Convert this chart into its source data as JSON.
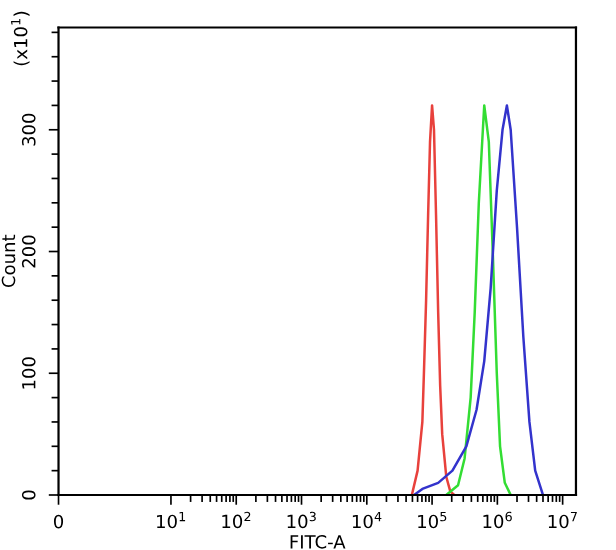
{
  "chart_data": {
    "type": "line",
    "xlabel": "FITC-A",
    "ylabel": "Count",
    "annotations": [
      "(x10$^{1}$)"
    ],
    "log": "x",
    "xlim": [
      0,
      16000000
    ],
    "ylim": [
      0,
      384
    ],
    "xticks": [
      0,
      {
        "value": 10,
        "label": "10$^{1}$"
      },
      {
        "value": 100,
        "label": "10$^{2}$"
      },
      {
        "value": 1000,
        "label": "10$^{3}$"
      },
      {
        "value": 10000,
        "label": "10$^{4}$"
      },
      {
        "value": 100000,
        "label": "10$^{5}$"
      },
      {
        "value": 1000000,
        "label": "10$^{6}$"
      },
      {
        "value": 10000000,
        "label": "10$^{7}$"
      }
    ],
    "yticks": [
      0,
      100,
      200,
      300
    ],
    "grid": false,
    "legend": false,
    "marker": "none",
    "line_style": "solid",
    "series": [
      {
        "color": "#e8413c",
        "x": [
          49000,
          60000,
          71000,
          75000,
          81000,
          87000,
          93000,
          100000,
          107000,
          115000,
          124000,
          133000,
          143000,
          165000,
          190000,
          220000
        ],
        "values": [
          0,
          20,
          60,
          100,
          160,
          230,
          290,
          320,
          300,
          230,
          150,
          90,
          50,
          15,
          3,
          0
        ]
      },
      {
        "color": "#33dd33",
        "x": [
          165000,
          250000,
          315000,
          390000,
          450000,
          520000,
          600000,
          630000,
          740000,
          850000,
          980000,
          1100000,
          1300000,
          1600000
        ],
        "values": [
          0,
          8,
          30,
          80,
          150,
          240,
          300,
          320,
          290,
          200,
          100,
          40,
          10,
          0
        ]
      },
      {
        "color": "#3333cc",
        "x": [
          53000,
          71000,
          124000,
          205000,
          335000,
          480000,
          630000,
          790000,
          980000,
          1200000,
          1400000,
          1600000,
          2000000,
          2500000,
          3100000,
          3800000,
          5000000
        ],
        "values": [
          0,
          5,
          10,
          20,
          40,
          70,
          110,
          170,
          250,
          300,
          320,
          300,
          220,
          130,
          60,
          20,
          0
        ]
      }
    ]
  }
}
